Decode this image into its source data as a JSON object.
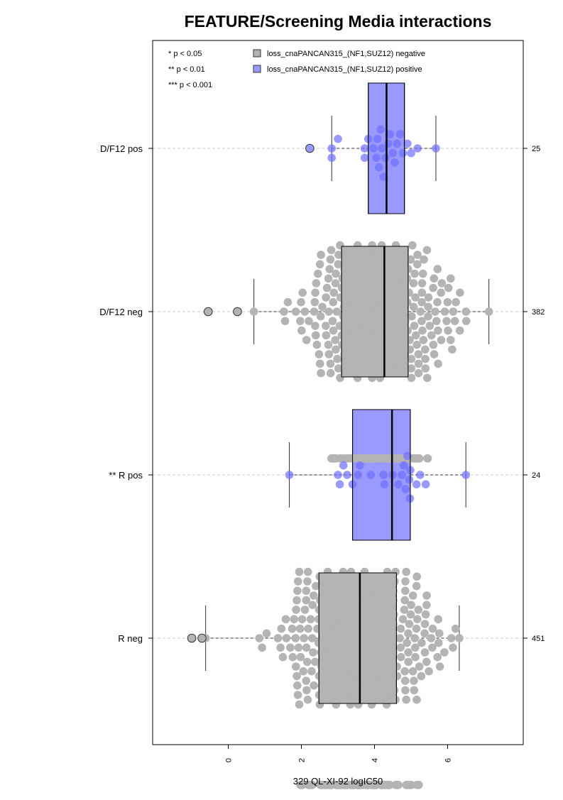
{
  "chart_data": {
    "type": "box",
    "title": "FEATURE/Screening Media interactions",
    "xlabel": "329 QL-XI-92 logIC50",
    "ylabel": "",
    "xlim": [
      -2.07,
      8.07
    ],
    "x_ticks": [
      0,
      2,
      4,
      6
    ],
    "orientation": "horizontal",
    "grid": false,
    "legend_placement": "top",
    "significance_legend": [
      "* p < 0.05",
      "** p < 0.01",
      "*** p < 0.001"
    ],
    "series": [
      {
        "name": "loss_cnaPANCAN315_(NF1,SUZ12) negative",
        "color": "#b3b3b3"
      },
      {
        "name": "loss_cnaPANCAN315_(NF1,SUZ12) positive",
        "color": "#9999ff"
      }
    ],
    "groups": [
      {
        "label": "D/F12 pos",
        "n": "25",
        "series": "positive",
        "box": {
          "whisker_low": 2.83,
          "q1": 3.83,
          "median": 4.33,
          "q3": 4.82,
          "whisker_high": 5.68
        },
        "outliers": [
          2.23
        ],
        "points": [
          2.83,
          2.83,
          3.0,
          3.73,
          3.73,
          3.83,
          3.97,
          4.05,
          4.08,
          4.12,
          4.17,
          4.2,
          4.25,
          4.3,
          4.38,
          4.42,
          4.5,
          4.55,
          4.62,
          4.7,
          4.78,
          4.9,
          5.0,
          5.18,
          5.68
        ]
      },
      {
        "label": "D/F12 neg",
        "n": "382",
        "series": "negative",
        "box": {
          "whisker_low": 0.7,
          "q1": 3.1,
          "median": 4.27,
          "q3": 4.92,
          "whisker_high": 7.13
        },
        "outliers": [
          -0.55,
          0.25
        ],
        "density": {
          "min": 0.7,
          "max": 7.13,
          "mode": 4.1,
          "count": 382
        }
      },
      {
        "label": "** R pos",
        "n": "24",
        "series": "positive",
        "box": {
          "whisker_low": 1.67,
          "q1": 3.4,
          "median": 4.48,
          "q3": 4.98,
          "whisker_high": 6.5
        },
        "outliers": [],
        "points": [
          1.67,
          3.0,
          3.05,
          3.15,
          3.25,
          3.4,
          3.55,
          3.6,
          3.9,
          4.25,
          4.27,
          4.5,
          4.65,
          4.75,
          4.8,
          4.85,
          4.9,
          4.95,
          4.97,
          4.98,
          5.15,
          5.25,
          5.4,
          6.5
        ]
      },
      {
        "label": "R neg",
        "n": "451",
        "series": "negative",
        "box": {
          "whisker_low": -0.62,
          "q1": 2.48,
          "median": 3.6,
          "q3": 4.6,
          "whisker_high": 6.32
        },
        "outliers": [
          -1.0,
          -0.72
        ],
        "density": {
          "min": -0.62,
          "max": 6.32,
          "mode": 3.5,
          "count": 451
        }
      }
    ]
  }
}
